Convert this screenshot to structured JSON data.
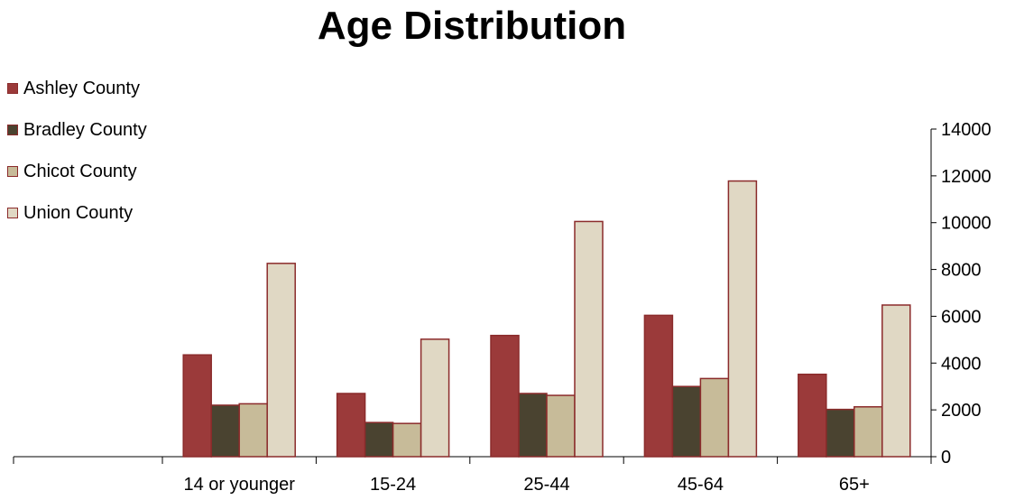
{
  "chart_data": {
    "type": "bar",
    "title": "Age Distribution",
    "categories": [
      "14 or younger",
      "15-24",
      "25-44",
      "45-64",
      "65+"
    ],
    "series": [
      {
        "name": "Ashley County",
        "color": "#9B3A3A",
        "values": [
          4350,
          2700,
          5180,
          6040,
          3520
        ]
      },
      {
        "name": "Bradley County",
        "color": "#4A4330",
        "values": [
          2200,
          1460,
          2700,
          3000,
          2020
        ]
      },
      {
        "name": "Chicot County",
        "color": "#C7BB99",
        "values": [
          2260,
          1420,
          2620,
          3340,
          2130
        ]
      },
      {
        "name": "Union County",
        "color": "#E0D8C4",
        "values": [
          8260,
          5020,
          10050,
          11780,
          6480
        ]
      }
    ],
    "ylim": [
      0,
      14000
    ],
    "yticks": [
      0,
      2000,
      4000,
      6000,
      8000,
      10000,
      12000,
      14000
    ],
    "y_axis_side": "right",
    "grid": false,
    "legend_position": "top-left",
    "bar_outline_color": "#8B2B2B"
  }
}
